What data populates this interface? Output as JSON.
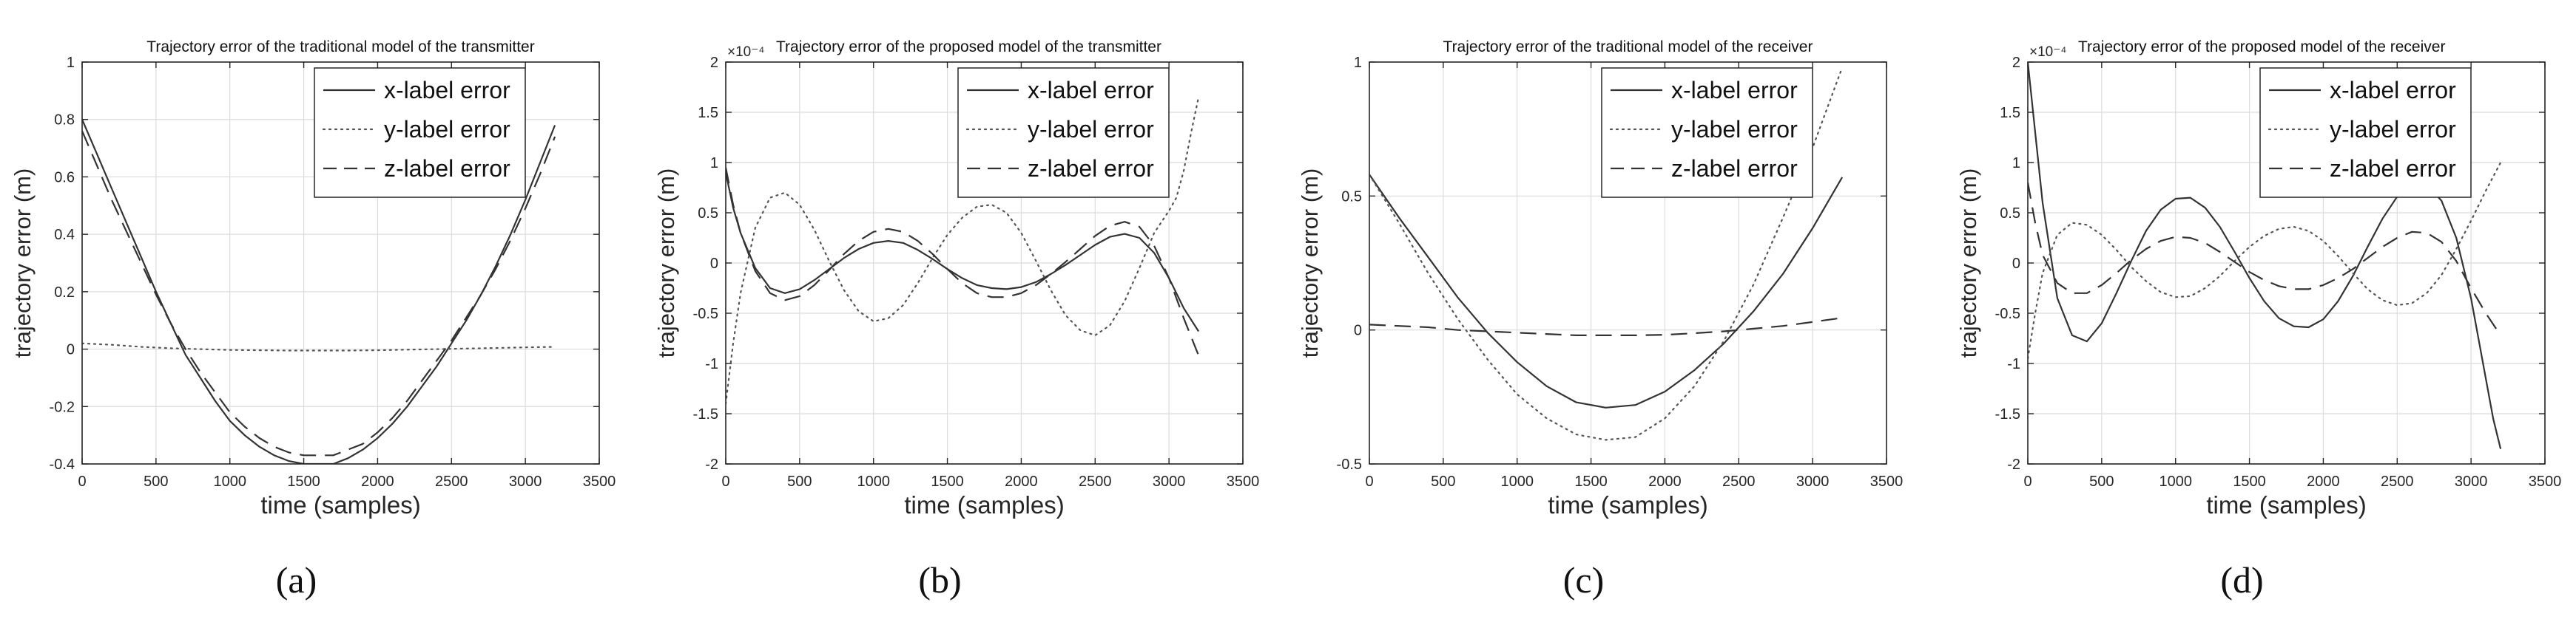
{
  "chart_data": [
    {
      "type": "line",
      "title": "Trajectory error of the traditional model of the transmitter",
      "xlabel": "time (samples)",
      "ylabel": "trajectory error (m)",
      "exponent_label": "",
      "panel_label": "(a)",
      "xlim": [
        0,
        3500
      ],
      "ylim": [
        -0.4,
        1
      ],
      "xticks": [
        0,
        500,
        1000,
        1500,
        2000,
        2500,
        3000,
        3500
      ],
      "yticks": [
        -0.4,
        -0.2,
        0,
        0.2,
        0.4,
        0.6,
        0.8,
        1
      ],
      "ytick_labels": [
        "-0.4",
        "-0.2",
        "0",
        "0.2",
        "0.4",
        "0.6",
        "0.8",
        "1"
      ],
      "grid": true,
      "legend_position": "top-right",
      "series": [
        {
          "name": "x-label error",
          "style": "solid",
          "x": [
            0,
            100,
            200,
            300,
            400,
            500,
            600,
            700,
            800,
            900,
            1000,
            1100,
            1200,
            1300,
            1400,
            1500,
            1600,
            1700,
            1800,
            1900,
            2000,
            2100,
            2200,
            2300,
            2400,
            2500,
            2600,
            2700,
            2800,
            2900,
            3000,
            3100,
            3200
          ],
          "y": [
            0.8,
            0.68,
            0.56,
            0.44,
            0.32,
            0.2,
            0.09,
            -0.02,
            -0.1,
            -0.18,
            -0.25,
            -0.3,
            -0.34,
            -0.37,
            -0.39,
            -0.4,
            -0.4,
            -0.4,
            -0.38,
            -0.35,
            -0.31,
            -0.26,
            -0.2,
            -0.13,
            -0.06,
            0.02,
            0.1,
            0.19,
            0.29,
            0.4,
            0.52,
            0.65,
            0.78
          ]
        },
        {
          "name": "y-label error",
          "style": "dotted",
          "x": [
            0,
            200,
            400,
            600,
            800,
            1000,
            1200,
            1400,
            1600,
            1800,
            2000,
            2200,
            2400,
            2600,
            2800,
            3000,
            3200
          ],
          "y": [
            0.02,
            0.015,
            0.008,
            0.003,
            0.0,
            -0.003,
            -0.004,
            -0.005,
            -0.005,
            -0.005,
            -0.004,
            -0.002,
            0.0,
            0.002,
            0.004,
            0.006,
            0.008
          ]
        },
        {
          "name": "z-label error",
          "style": "dashed",
          "x": [
            0,
            100,
            200,
            300,
            400,
            500,
            600,
            700,
            800,
            900,
            1000,
            1100,
            1200,
            1300,
            1400,
            1500,
            1600,
            1700,
            1800,
            1900,
            2000,
            2100,
            2200,
            2300,
            2400,
            2500,
            2600,
            2700,
            2800,
            2900,
            3000,
            3100,
            3200
          ],
          "y": [
            0.76,
            0.64,
            0.52,
            0.41,
            0.3,
            0.19,
            0.09,
            0.0,
            -0.08,
            -0.15,
            -0.22,
            -0.27,
            -0.31,
            -0.34,
            -0.36,
            -0.37,
            -0.37,
            -0.37,
            -0.35,
            -0.33,
            -0.29,
            -0.24,
            -0.18,
            -0.11,
            -0.04,
            0.03,
            0.11,
            0.19,
            0.28,
            0.38,
            0.49,
            0.61,
            0.74
          ]
        }
      ]
    },
    {
      "type": "line",
      "title": "Trajectory error of the proposed model of the transmitter",
      "xlabel": "time (samples)",
      "ylabel": "trajectory error (m)",
      "exponent_label": "×10⁻⁴",
      "panel_label": "(b)",
      "xlim": [
        0,
        3500
      ],
      "ylim": [
        -2,
        2
      ],
      "xticks": [
        0,
        500,
        1000,
        1500,
        2000,
        2500,
        3000,
        3500
      ],
      "yticks": [
        -2,
        -1.5,
        -1,
        -0.5,
        0,
        0.5,
        1,
        1.5,
        2
      ],
      "ytick_labels": [
        "-2",
        "-1.5",
        "-1",
        "-0.5",
        "0",
        "0.5",
        "1",
        "1.5",
        "2"
      ],
      "grid": true,
      "legend_position": "top-right",
      "series": [
        {
          "name": "x-label error",
          "style": "solid",
          "x": [
            0,
            50,
            100,
            200,
            300,
            400,
            500,
            600,
            700,
            800,
            900,
            1000,
            1100,
            1200,
            1300,
            1400,
            1500,
            1600,
            1700,
            1800,
            1900,
            2000,
            2100,
            2200,
            2300,
            2400,
            2500,
            2600,
            2700,
            2800,
            2900,
            3000,
            3100,
            3200
          ],
          "y": [
            0.9,
            0.55,
            0.3,
            -0.05,
            -0.25,
            -0.3,
            -0.26,
            -0.17,
            -0.06,
            0.05,
            0.14,
            0.2,
            0.22,
            0.2,
            0.13,
            0.04,
            -0.06,
            -0.15,
            -0.22,
            -0.25,
            -0.26,
            -0.24,
            -0.19,
            -0.11,
            -0.02,
            0.08,
            0.18,
            0.26,
            0.29,
            0.25,
            0.1,
            -0.15,
            -0.45,
            -0.68
          ]
        },
        {
          "name": "y-label error",
          "style": "dotted",
          "x": [
            0,
            50,
            100,
            200,
            300,
            400,
            500,
            600,
            700,
            800,
            900,
            1000,
            1100,
            1200,
            1300,
            1400,
            1500,
            1600,
            1700,
            1800,
            1900,
            2000,
            2100,
            2200,
            2300,
            2400,
            2500,
            2600,
            2700,
            2800,
            2900,
            3000,
            3050,
            3100,
            3150,
            3200
          ],
          "y": [
            -1.4,
            -0.8,
            -0.3,
            0.35,
            0.65,
            0.7,
            0.58,
            0.33,
            0.02,
            -0.27,
            -0.48,
            -0.58,
            -0.55,
            -0.42,
            -0.2,
            0.05,
            0.28,
            0.45,
            0.56,
            0.58,
            0.5,
            0.3,
            0.02,
            -0.27,
            -0.52,
            -0.67,
            -0.72,
            -0.62,
            -0.38,
            -0.05,
            0.3,
            0.52,
            0.65,
            0.92,
            1.3,
            1.65
          ]
        },
        {
          "name": "z-label error",
          "style": "dashed",
          "x": [
            0,
            50,
            100,
            200,
            300,
            400,
            500,
            600,
            700,
            800,
            900,
            1000,
            1100,
            1200,
            1300,
            1400,
            1500,
            1600,
            1700,
            1800,
            1900,
            2000,
            2100,
            2200,
            2300,
            2400,
            2500,
            2600,
            2700,
            2800,
            2900,
            3000,
            3100,
            3200
          ],
          "y": [
            0.95,
            0.58,
            0.3,
            -0.08,
            -0.3,
            -0.37,
            -0.33,
            -0.22,
            -0.07,
            0.09,
            0.22,
            0.31,
            0.34,
            0.31,
            0.22,
            0.09,
            -0.06,
            -0.2,
            -0.3,
            -0.34,
            -0.34,
            -0.3,
            -0.22,
            -0.11,
            0.01,
            0.14,
            0.27,
            0.37,
            0.41,
            0.36,
            0.17,
            -0.15,
            -0.55,
            -0.92
          ]
        }
      ]
    },
    {
      "type": "line",
      "title": "Trajectory error of the traditional model of the receiver",
      "xlabel": "time (samples)",
      "ylabel": "trajectory error (m)",
      "exponent_label": "",
      "panel_label": "(c)",
      "xlim": [
        0,
        3500
      ],
      "ylim": [
        -0.5,
        1
      ],
      "xticks": [
        0,
        500,
        1000,
        1500,
        2000,
        2500,
        3000,
        3500
      ],
      "yticks": [
        -0.5,
        0,
        0.5,
        1
      ],
      "ytick_labels": [
        "-0.5",
        "0",
        "0.5",
        "1"
      ],
      "grid": true,
      "legend_position": "top-right",
      "series": [
        {
          "name": "x-label error",
          "style": "solid",
          "x": [
            0,
            200,
            400,
            600,
            800,
            1000,
            1200,
            1400,
            1600,
            1800,
            2000,
            2200,
            2400,
            2600,
            2800,
            3000,
            3200
          ],
          "y": [
            0.58,
            0.42,
            0.27,
            0.12,
            -0.01,
            -0.12,
            -0.21,
            -0.27,
            -0.29,
            -0.28,
            -0.23,
            -0.15,
            -0.05,
            0.07,
            0.21,
            0.38,
            0.57
          ]
        },
        {
          "name": "y-label error",
          "style": "dotted",
          "x": [
            0,
            200,
            400,
            600,
            800,
            1000,
            1200,
            1400,
            1600,
            1800,
            2000,
            2200,
            2400,
            2600,
            2800,
            3000,
            3200
          ],
          "y": [
            0.58,
            0.4,
            0.21,
            0.04,
            -0.11,
            -0.24,
            -0.33,
            -0.39,
            -0.41,
            -0.4,
            -0.33,
            -0.21,
            -0.04,
            0.17,
            0.42,
            0.68,
            0.98
          ]
        },
        {
          "name": "z-label error",
          "style": "dashed",
          "x": [
            0,
            200,
            400,
            600,
            800,
            1000,
            1200,
            1400,
            1600,
            1800,
            2000,
            2200,
            2400,
            2600,
            2800,
            3000,
            3200
          ],
          "y": [
            0.02,
            0.015,
            0.01,
            0.0,
            -0.005,
            -0.01,
            -0.015,
            -0.02,
            -0.02,
            -0.02,
            -0.018,
            -0.012,
            -0.005,
            0.005,
            0.015,
            0.03,
            0.045
          ]
        }
      ]
    },
    {
      "type": "line",
      "title": "Trajectory error of the proposed model of the receiver",
      "xlabel": "time (samples)",
      "ylabel": "trajectory error (m)",
      "exponent_label": "×10⁻⁴",
      "panel_label": "(d)",
      "xlim": [
        0,
        3500
      ],
      "ylim": [
        -2,
        2
      ],
      "xticks": [
        0,
        500,
        1000,
        1500,
        2000,
        2500,
        3000,
        3500
      ],
      "yticks": [
        -2,
        -1.5,
        -1,
        -0.5,
        0,
        0.5,
        1,
        1.5,
        2
      ],
      "ytick_labels": [
        "-2",
        "-1.5",
        "-1",
        "-0.5",
        "0",
        "0.5",
        "1",
        "1.5",
        "2"
      ],
      "grid": true,
      "legend_position": "top-right",
      "series": [
        {
          "name": "x-label error",
          "style": "solid",
          "x": [
            0,
            50,
            100,
            200,
            300,
            400,
            500,
            600,
            700,
            800,
            900,
            1000,
            1100,
            1200,
            1300,
            1400,
            1500,
            1600,
            1700,
            1800,
            1900,
            2000,
            2100,
            2200,
            2300,
            2400,
            2500,
            2600,
            2700,
            2800,
            2900,
            3000,
            3100,
            3150,
            3200
          ],
          "y": [
            2.0,
            1.3,
            0.6,
            -0.35,
            -0.72,
            -0.78,
            -0.6,
            -0.3,
            0.02,
            0.32,
            0.53,
            0.64,
            0.65,
            0.55,
            0.36,
            0.11,
            -0.15,
            -0.38,
            -0.55,
            -0.63,
            -0.64,
            -0.56,
            -0.38,
            -0.13,
            0.16,
            0.44,
            0.66,
            0.78,
            0.78,
            0.62,
            0.25,
            -0.35,
            -1.15,
            -1.55,
            -1.85
          ]
        },
        {
          "name": "y-label error",
          "style": "dotted",
          "x": [
            0,
            50,
            100,
            200,
            300,
            400,
            500,
            600,
            700,
            800,
            900,
            1000,
            1100,
            1200,
            1300,
            1400,
            1500,
            1600,
            1700,
            1800,
            1900,
            2000,
            2100,
            2200,
            2300,
            2400,
            2500,
            2600,
            2700,
            2800,
            2900,
            3000,
            3100,
            3200
          ],
          "y": [
            -0.95,
            -0.5,
            -0.1,
            0.28,
            0.4,
            0.38,
            0.28,
            0.13,
            -0.04,
            -0.18,
            -0.29,
            -0.34,
            -0.33,
            -0.25,
            -0.13,
            0.02,
            0.16,
            0.27,
            0.34,
            0.36,
            0.32,
            0.22,
            0.07,
            -0.1,
            -0.26,
            -0.37,
            -0.42,
            -0.4,
            -0.3,
            -0.12,
            0.14,
            0.42,
            0.72,
            1.0
          ]
        },
        {
          "name": "z-label error",
          "style": "dashed",
          "x": [
            0,
            50,
            100,
            200,
            300,
            400,
            500,
            600,
            700,
            800,
            900,
            1000,
            1100,
            1200,
            1300,
            1400,
            1500,
            1600,
            1700,
            1800,
            1900,
            2000,
            2100,
            2200,
            2300,
            2400,
            2500,
            2600,
            2700,
            2800,
            2900,
            3000,
            3100,
            3200
          ],
          "y": [
            0.8,
            0.4,
            0.08,
            -0.2,
            -0.3,
            -0.3,
            -0.22,
            -0.1,
            0.03,
            0.14,
            0.22,
            0.26,
            0.25,
            0.2,
            0.11,
            0.01,
            -0.09,
            -0.17,
            -0.23,
            -0.26,
            -0.26,
            -0.22,
            -0.15,
            -0.06,
            0.05,
            0.16,
            0.25,
            0.31,
            0.3,
            0.21,
            0.02,
            -0.25,
            -0.5,
            -0.72
          ]
        }
      ]
    }
  ]
}
